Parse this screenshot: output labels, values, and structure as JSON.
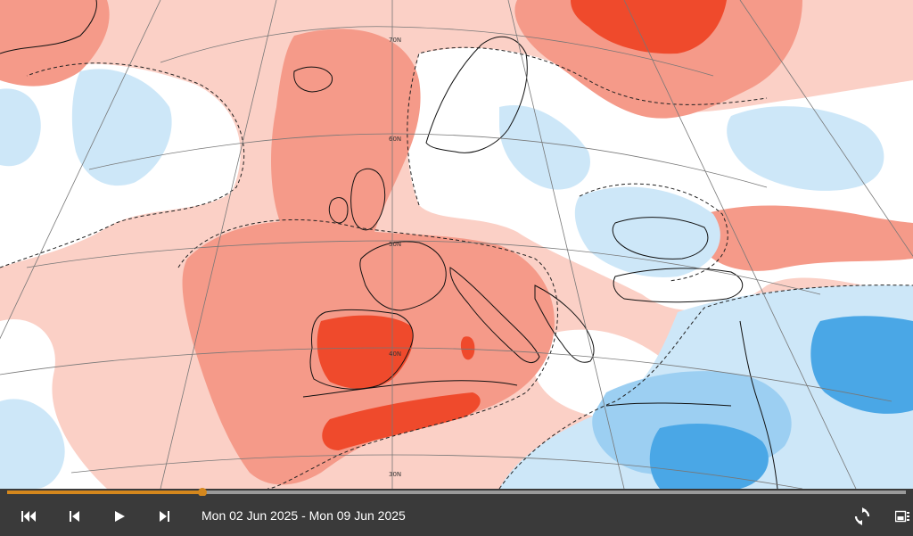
{
  "map": {
    "colors": {
      "warm_strong": "#ef4a2c",
      "warm_medium": "#f59a89",
      "warm_light": "#fbd0c6",
      "neutral": "#ffffff",
      "cool_light": "#cde7f8",
      "cool_medium": "#9ccff2",
      "cool_strong": "#4aa7e6",
      "cool_deep": "#2f8fdb",
      "coastline": "#111111",
      "graticule": "#777777"
    },
    "latitude_labels": [
      "70N",
      "60N",
      "50N",
      "40N",
      "30N"
    ]
  },
  "timeline": {
    "progress": 0.217,
    "accent_color": "#d4871d"
  },
  "controls": {
    "date_range": "Mon 02 Jun 2025 - Mon 09 Jun 2025",
    "buttons": [
      "skip-to-start-icon",
      "step-back-icon",
      "play-icon",
      "step-forward-icon",
      "loop-icon",
      "legend-icon"
    ]
  }
}
